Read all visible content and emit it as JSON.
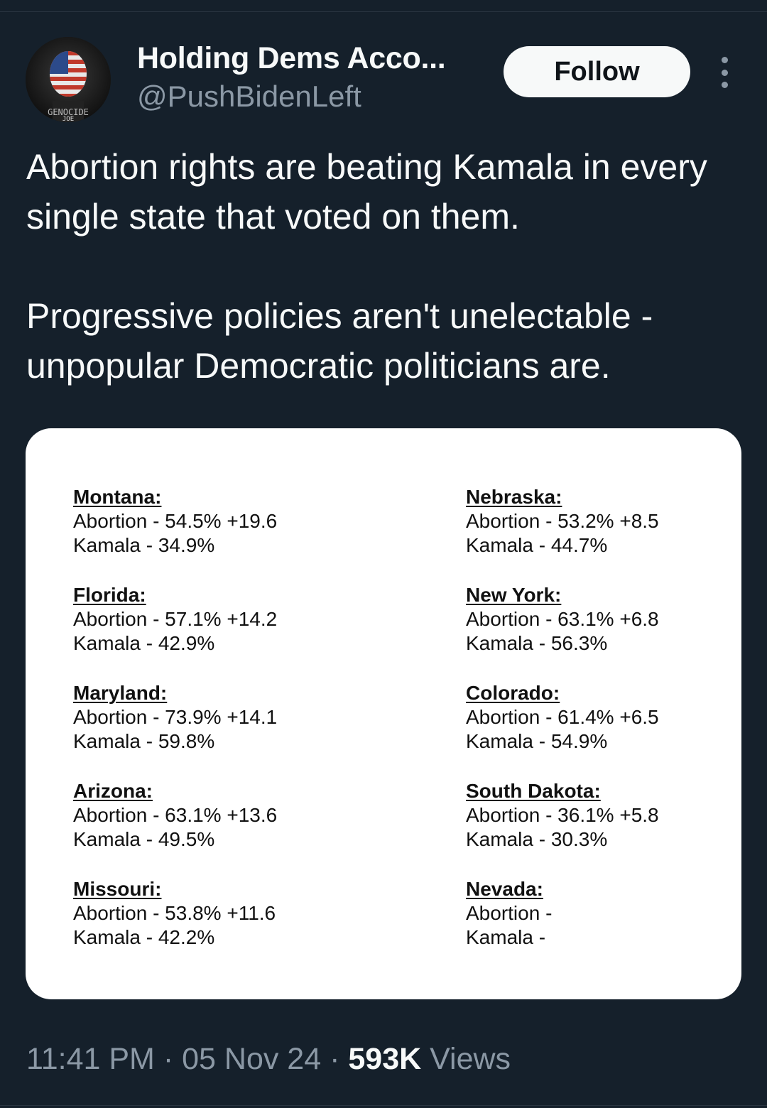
{
  "author": {
    "name": "Holding Dems Acco...",
    "handle": "@PushBidenLeft"
  },
  "actions": {
    "follow_label": "Follow"
  },
  "tweet": {
    "paragraph1": "Abortion rights are beating Kamala in every single state that voted on them.",
    "paragraph2": "Progressive policies aren't unelectable - unpopular Democratic politicians are."
  },
  "card": {
    "left": [
      {
        "state": "Montana:",
        "abortion": "Abortion - 54.5% +19.6",
        "kamala": "Kamala - 34.9%"
      },
      {
        "state": "Florida:",
        "abortion": "Abortion - 57.1% +14.2",
        "kamala": "Kamala - 42.9%"
      },
      {
        "state": "Maryland:",
        "abortion": "Abortion - 73.9% +14.1",
        "kamala": "Kamala - 59.8%"
      },
      {
        "state": "Arizona:",
        "abortion": "Abortion - 63.1% +13.6",
        "kamala": "Kamala - 49.5%"
      },
      {
        "state": "Missouri:",
        "abortion": "Abortion - 53.8% +11.6",
        "kamala": "Kamala - 42.2%"
      }
    ],
    "right": [
      {
        "state": "Nebraska:",
        "abortion": "Abortion - 53.2% +8.5",
        "kamala": "Kamala - 44.7%"
      },
      {
        "state": "New York:",
        "abortion": "Abortion - 63.1% +6.8",
        "kamala": "Kamala - 56.3%"
      },
      {
        "state": "Colorado:",
        "abortion": "Abortion - 61.4% +6.5",
        "kamala": "Kamala - 54.9%"
      },
      {
        "state": "South Dakota:",
        "abortion": "Abortion - 36.1% +5.8",
        "kamala": "Kamala - 30.3%"
      },
      {
        "state": "Nevada:",
        "abortion": "Abortion -",
        "kamala": "Kamala -"
      }
    ]
  },
  "footer": {
    "time": "11:41 PM",
    "separator": "·",
    "date": "05 Nov 24",
    "views_count": "593K",
    "views_label": "Views"
  },
  "icons": {
    "more": "more-vertical-icon",
    "avatar": "avatar-image"
  },
  "colors": {
    "background": "#15202b",
    "text_primary": "#f7f9f9",
    "text_secondary": "#8b98a5",
    "follow_bg": "#f7f9f9"
  }
}
